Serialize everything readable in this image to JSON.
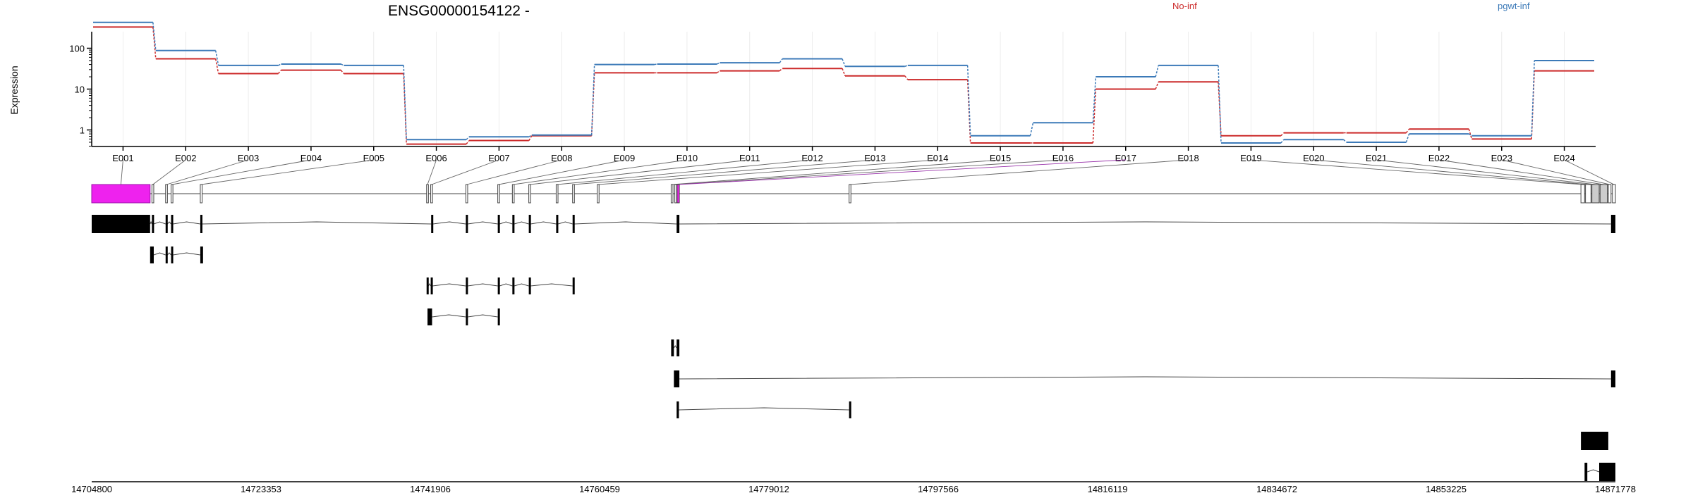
{
  "chart_data": {
    "type": "line",
    "title": "ENSG00000154122 -",
    "ylabel": "Expression",
    "xlabel": "",
    "y_scale": "log",
    "y_ticks": [
      1,
      10,
      100
    ],
    "y_tick_labels": [
      "1",
      "10",
      "100"
    ],
    "grid": true,
    "legend_position": "top",
    "categories": [
      "E001",
      "E002",
      "E003",
      "E004",
      "E005",
      "E006",
      "E007",
      "E008",
      "E009",
      "E010",
      "E011",
      "E012",
      "E013",
      "E014",
      "E015",
      "E016",
      "E017",
      "E018",
      "E019",
      "E020",
      "E021",
      "E022",
      "E023",
      "E024"
    ],
    "series": [
      {
        "name": "No-inf",
        "color": "#cc2a2a",
        "values": [
          330,
          55,
          24,
          29,
          24,
          0.45,
          0.55,
          0.72,
          25,
          25,
          28,
          32,
          21,
          17,
          0.48,
          0.48,
          10,
          15,
          0.72,
          0.85,
          0.85,
          1.05,
          0.6,
          28
        ]
      },
      {
        "name": "pgwt-inf",
        "color": "#3c7ab8",
        "values": [
          430,
          88,
          38,
          41,
          38,
          0.58,
          0.68,
          0.75,
          40,
          41,
          44,
          55,
          36,
          38,
          0.72,
          1.5,
          20,
          38,
          0.48,
          0.58,
          0.5,
          0.8,
          0.72,
          50
        ]
      }
    ],
    "exon_colors": {
      "highlight": "#ee22ee",
      "highlight_border": "#9911aa",
      "default": "#ffffff",
      "shaded": "#cccccc"
    },
    "genomic_axis": {
      "min": 14704800,
      "max": 14871778,
      "ticks": [
        14704800,
        14723353,
        14741906,
        14760459,
        14779012,
        14797566,
        14816119,
        14834672,
        14853225,
        14871778
      ],
      "tick_labels": [
        "14704800",
        "14723353",
        "14741906",
        "14760459",
        "14779012",
        "14797566",
        "14816119",
        "14834672",
        "14853225",
        "14871778"
      ]
    }
  }
}
